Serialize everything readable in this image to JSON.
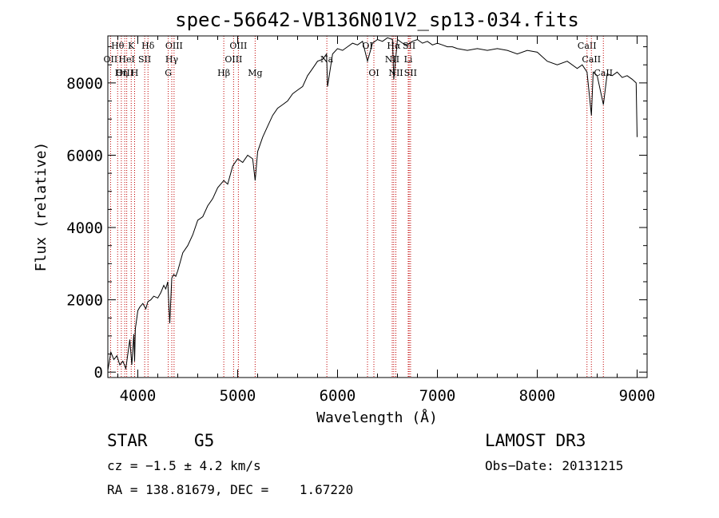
{
  "chart_data": {
    "type": "line",
    "title": "spec-56642-VB136N01V2_sp13-034.fits",
    "xlabel": "Wavelength (Å)",
    "ylabel": "Flux (relative)",
    "xlim": [
      3700,
      9100
    ],
    "ylim": [
      -150,
      9300
    ],
    "xticks": [
      4000,
      5000,
      6000,
      7000,
      8000,
      9000
    ],
    "yticks": [
      0,
      2000,
      4000,
      6000,
      8000
    ],
    "xtick_labels": [
      "4000",
      "5000",
      "6000",
      "7000",
      "8000",
      "9000"
    ],
    "ytick_labels": [
      "0",
      "2000",
      "4000",
      "6000",
      "8000"
    ],
    "series": [
      {
        "name": "spectrum",
        "x": [
          3700,
          3730,
          3760,
          3790,
          3820,
          3850,
          3880,
          3900,
          3920,
          3940,
          3960,
          3968,
          3975,
          3990,
          4000,
          4020,
          4050,
          4080,
          4101,
          4130,
          4160,
          4200,
          4230,
          4260,
          4280,
          4300,
          4320,
          4340,
          4360,
          4380,
          4400,
          4450,
          4500,
          4550,
          4600,
          4650,
          4700,
          4750,
          4800,
          4861,
          4900,
          4950,
          5000,
          5050,
          5100,
          5150,
          5175,
          5200,
          5250,
          5300,
          5350,
          5400,
          5450,
          5500,
          5550,
          5600,
          5650,
          5700,
          5750,
          5800,
          5850,
          5890,
          5900,
          5950,
          6000,
          6050,
          6100,
          6150,
          6200,
          6250,
          6300,
          6350,
          6400,
          6450,
          6500,
          6550,
          6563,
          6600,
          6650,
          6700,
          6750,
          6800,
          6850,
          6900,
          6950,
          7000,
          7050,
          7100,
          7150,
          7200,
          7300,
          7400,
          7500,
          7600,
          7700,
          7800,
          7900,
          8000,
          8100,
          8200,
          8300,
          8400,
          8450,
          8498,
          8542,
          8560,
          8600,
          8662,
          8700,
          8750,
          8800,
          8850,
          8900,
          8950,
          8990,
          9000
        ],
        "y": [
          50,
          550,
          350,
          450,
          200,
          300,
          100,
          500,
          900,
          200,
          1050,
          300,
          1200,
          1500,
          1700,
          1800,
          1900,
          1750,
          1950,
          2000,
          2100,
          2050,
          2200,
          2400,
          2300,
          2500,
          1350,
          2600,
          2700,
          2650,
          2800,
          3300,
          3500,
          3800,
          4200,
          4300,
          4600,
          4800,
          5100,
          5300,
          5200,
          5700,
          5900,
          5800,
          6000,
          5900,
          5300,
          6100,
          6500,
          6800,
          7100,
          7300,
          7400,
          7500,
          7700,
          7800,
          7900,
          8200,
          8400,
          8600,
          8650,
          8800,
          7900,
          8800,
          8950,
          8900,
          9000,
          9100,
          9050,
          9150,
          8600,
          9100,
          9200,
          9150,
          9250,
          9200,
          8100,
          9200,
          9100,
          9050,
          9150,
          9200,
          9100,
          9150,
          9050,
          9100,
          9050,
          9000,
          9000,
          8950,
          8900,
          8950,
          8900,
          8950,
          8900,
          8800,
          8900,
          8850,
          8600,
          8500,
          8600,
          8400,
          8500,
          8300,
          7100,
          8300,
          8200,
          7400,
          8250,
          8200,
          8300,
          8150,
          8200,
          8100,
          8000,
          6500
        ]
      }
    ],
    "lines": [
      {
        "name": "Hθ",
        "wl": 3798,
        "row": 0
      },
      {
        "name": "OII",
        "wl": 3727,
        "row": 1
      },
      {
        "name": "OIII",
        "wl": 3869,
        "row": 2
      },
      {
        "name": "Hη",
        "wl": 3835,
        "row": 2
      },
      {
        "name": "K",
        "wl": 3934,
        "row": 0
      },
      {
        "name": "HeI",
        "wl": 3889,
        "row": 1
      },
      {
        "name": "SII",
        "wl": 4069,
        "row": 1
      },
      {
        "name": "H",
        "wl": 3968,
        "row": 2
      },
      {
        "name": "Hδ",
        "wl": 4102,
        "row": 0
      },
      {
        "name": "OIII",
        "wl": 4363,
        "row": 0
      },
      {
        "name": "Hγ",
        "wl": 4340,
        "row": 1
      },
      {
        "name": "G",
        "wl": 4305,
        "row": 2
      },
      {
        "name": "Hβ",
        "wl": 4861,
        "row": 2
      },
      {
        "name": "OIII",
        "wl": 5007,
        "row": 0
      },
      {
        "name": "OIII",
        "wl": 4959,
        "row": 1
      },
      {
        "name": "Mg",
        "wl": 5175,
        "row": 2
      },
      {
        "name": "Na",
        "wl": 5893,
        "row": 1
      },
      {
        "name": "OI",
        "wl": 6300,
        "row": 0
      },
      {
        "name": "OI",
        "wl": 6364,
        "row": 2
      },
      {
        "name": "Hα",
        "wl": 6563,
        "row": 0
      },
      {
        "name": "NII",
        "wl": 6548,
        "row": 1
      },
      {
        "name": "NII",
        "wl": 6584,
        "row": 2
      },
      {
        "name": "SII",
        "wl": 6717,
        "row": 0
      },
      {
        "name": "Li",
        "wl": 6708,
        "row": 1
      },
      {
        "name": "SII",
        "wl": 6731,
        "row": 2
      },
      {
        "name": "CaII",
        "wl": 8498,
        "row": 0
      },
      {
        "name": "CaII",
        "wl": 8542,
        "row": 1
      },
      {
        "name": "CaII",
        "wl": 8662,
        "row": 2
      }
    ]
  },
  "info": {
    "class": "STAR",
    "subclass": "G5",
    "survey": "LAMOST DR3",
    "cz": "cz = −1.5 ± 4.2 km/s",
    "obs_date": "Obs−Date: 20131215",
    "coords": "RA = 138.81679, DEC =    1.67220"
  }
}
